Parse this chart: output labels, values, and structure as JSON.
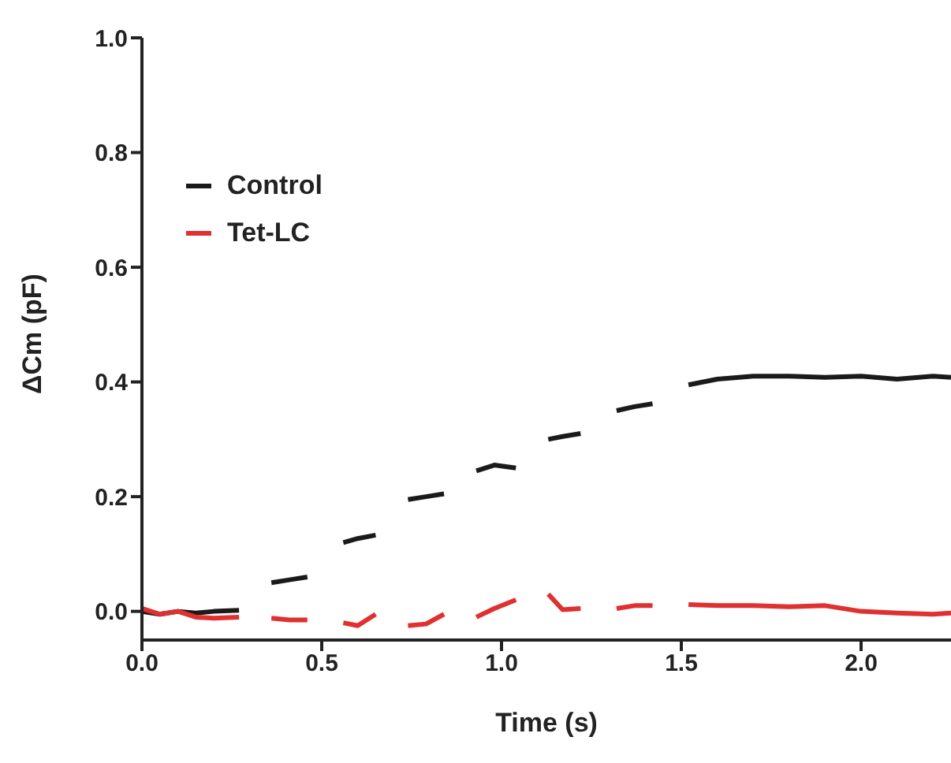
{
  "chart_data": {
    "type": "line",
    "xlabel": "Time (s)",
    "ylabel": "ΔCm (pF)",
    "x": [
      0,
      0.05,
      0.1,
      0.15,
      0.2,
      0.27,
      0.32,
      0.36,
      0.41,
      0.46,
      0.51,
      0.56,
      0.6,
      0.65,
      0.7,
      0.74,
      0.79,
      0.84,
      0.88,
      0.93,
      0.98,
      1.04,
      1.08,
      1.13,
      1.17,
      1.22,
      1.27,
      1.32,
      1.37,
      1.42,
      1.47,
      1.52,
      1.6,
      1.7,
      1.8,
      1.9,
      2.0,
      2.1,
      2.2,
      2.25
    ],
    "series": [
      {
        "name": "Control",
        "color": "#1a1a1a",
        "values": [
          0,
          -0.005,
          0,
          -0.003,
          0,
          0.002,
          null,
          0.05,
          0.055,
          0.06,
          null,
          0.12,
          0.127,
          0.133,
          null,
          0.195,
          0.2,
          0.205,
          null,
          0.245,
          0.255,
          0.25,
          null,
          0.3,
          0.305,
          0.31,
          null,
          0.35,
          0.357,
          0.362,
          null,
          0.395,
          0.405,
          0.41,
          0.41,
          0.408,
          0.41,
          0.405,
          0.41,
          0.408
        ]
      },
      {
        "name": "Tet-LC",
        "color": "#e03030",
        "values": [
          0.005,
          -0.005,
          0,
          -0.01,
          -0.012,
          -0.01,
          null,
          -0.012,
          -0.015,
          -0.015,
          null,
          -0.02,
          -0.025,
          -0.005,
          null,
          -0.025,
          -0.022,
          -0.005,
          null,
          -0.01,
          0.005,
          0.02,
          null,
          0.03,
          0.003,
          0.005,
          null,
          0.005,
          0.01,
          0.01,
          null,
          0.012,
          0.01,
          0.01,
          0.008,
          0.01,
          0,
          -0.003,
          -0.005,
          -0.003
        ]
      }
    ],
    "xlim": [
      0,
      2.25
    ],
    "ylim": [
      -0.05,
      1.0
    ],
    "xticks": [
      {
        "value": 0,
        "label": "0.0"
      },
      {
        "value": 0.5,
        "label": "0.5"
      },
      {
        "value": 1,
        "label": "1.0"
      },
      {
        "value": 1.5,
        "label": "1.5"
      },
      {
        "value": 2,
        "label": "2.0"
      }
    ],
    "yticks": [
      {
        "value": 0,
        "label": "0.0"
      },
      {
        "value": 0.2,
        "label": "0.2"
      },
      {
        "value": 0.4,
        "label": "0.4"
      },
      {
        "value": 0.6,
        "label": "0.6"
      },
      {
        "value": 0.8,
        "label": "0.8"
      },
      {
        "value": 1,
        "label": "1.0"
      }
    ],
    "grid": false,
    "legend": "top left",
    "marker": "none",
    "line_style": "solid"
  }
}
